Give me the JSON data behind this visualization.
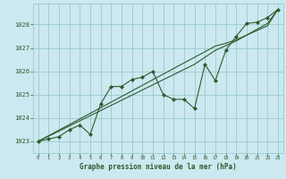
{
  "title": "Graphe pression niveau de la mer (hPa)",
  "background_color": "#cce8f0",
  "grid_color": "#99cccc",
  "line_color": "#2d5a2d",
  "x_data": [
    0,
    1,
    2,
    3,
    4,
    5,
    6,
    7,
    8,
    9,
    10,
    11,
    12,
    13,
    14,
    15,
    16,
    17,
    18,
    19,
    20,
    21,
    22,
    23
  ],
  "y_main": [
    1023.0,
    1023.1,
    1023.2,
    1023.5,
    1023.7,
    1023.3,
    1024.6,
    1025.35,
    1025.35,
    1025.65,
    1025.75,
    1026.0,
    1025.0,
    1024.8,
    1024.8,
    1024.4,
    1026.3,
    1025.6,
    1026.9,
    1027.5,
    1028.05,
    1028.1,
    1028.3,
    1028.65
  ],
  "y_trend1": [
    1023.0,
    1023.24,
    1023.48,
    1023.72,
    1023.96,
    1024.2,
    1024.44,
    1024.68,
    1024.92,
    1025.16,
    1025.4,
    1025.64,
    1025.88,
    1026.12,
    1026.36,
    1026.6,
    1026.84,
    1027.08,
    1027.2,
    1027.35,
    1027.55,
    1027.75,
    1027.95,
    1028.65
  ],
  "y_trend2": [
    1023.0,
    1023.22,
    1023.44,
    1023.66,
    1023.88,
    1024.1,
    1024.32,
    1024.54,
    1024.76,
    1024.98,
    1025.2,
    1025.42,
    1025.64,
    1025.86,
    1026.08,
    1026.3,
    1026.6,
    1026.9,
    1027.1,
    1027.3,
    1027.55,
    1027.8,
    1028.05,
    1028.65
  ],
  "ylim": [
    1022.5,
    1028.9
  ],
  "xlim": [
    -0.5,
    23.5
  ],
  "yticks": [
    1023,
    1024,
    1025,
    1026,
    1027,
    1028
  ],
  "xticks": [
    0,
    1,
    2,
    3,
    4,
    5,
    6,
    7,
    8,
    9,
    10,
    11,
    12,
    13,
    14,
    15,
    16,
    17,
    18,
    19,
    20,
    21,
    22,
    23
  ]
}
